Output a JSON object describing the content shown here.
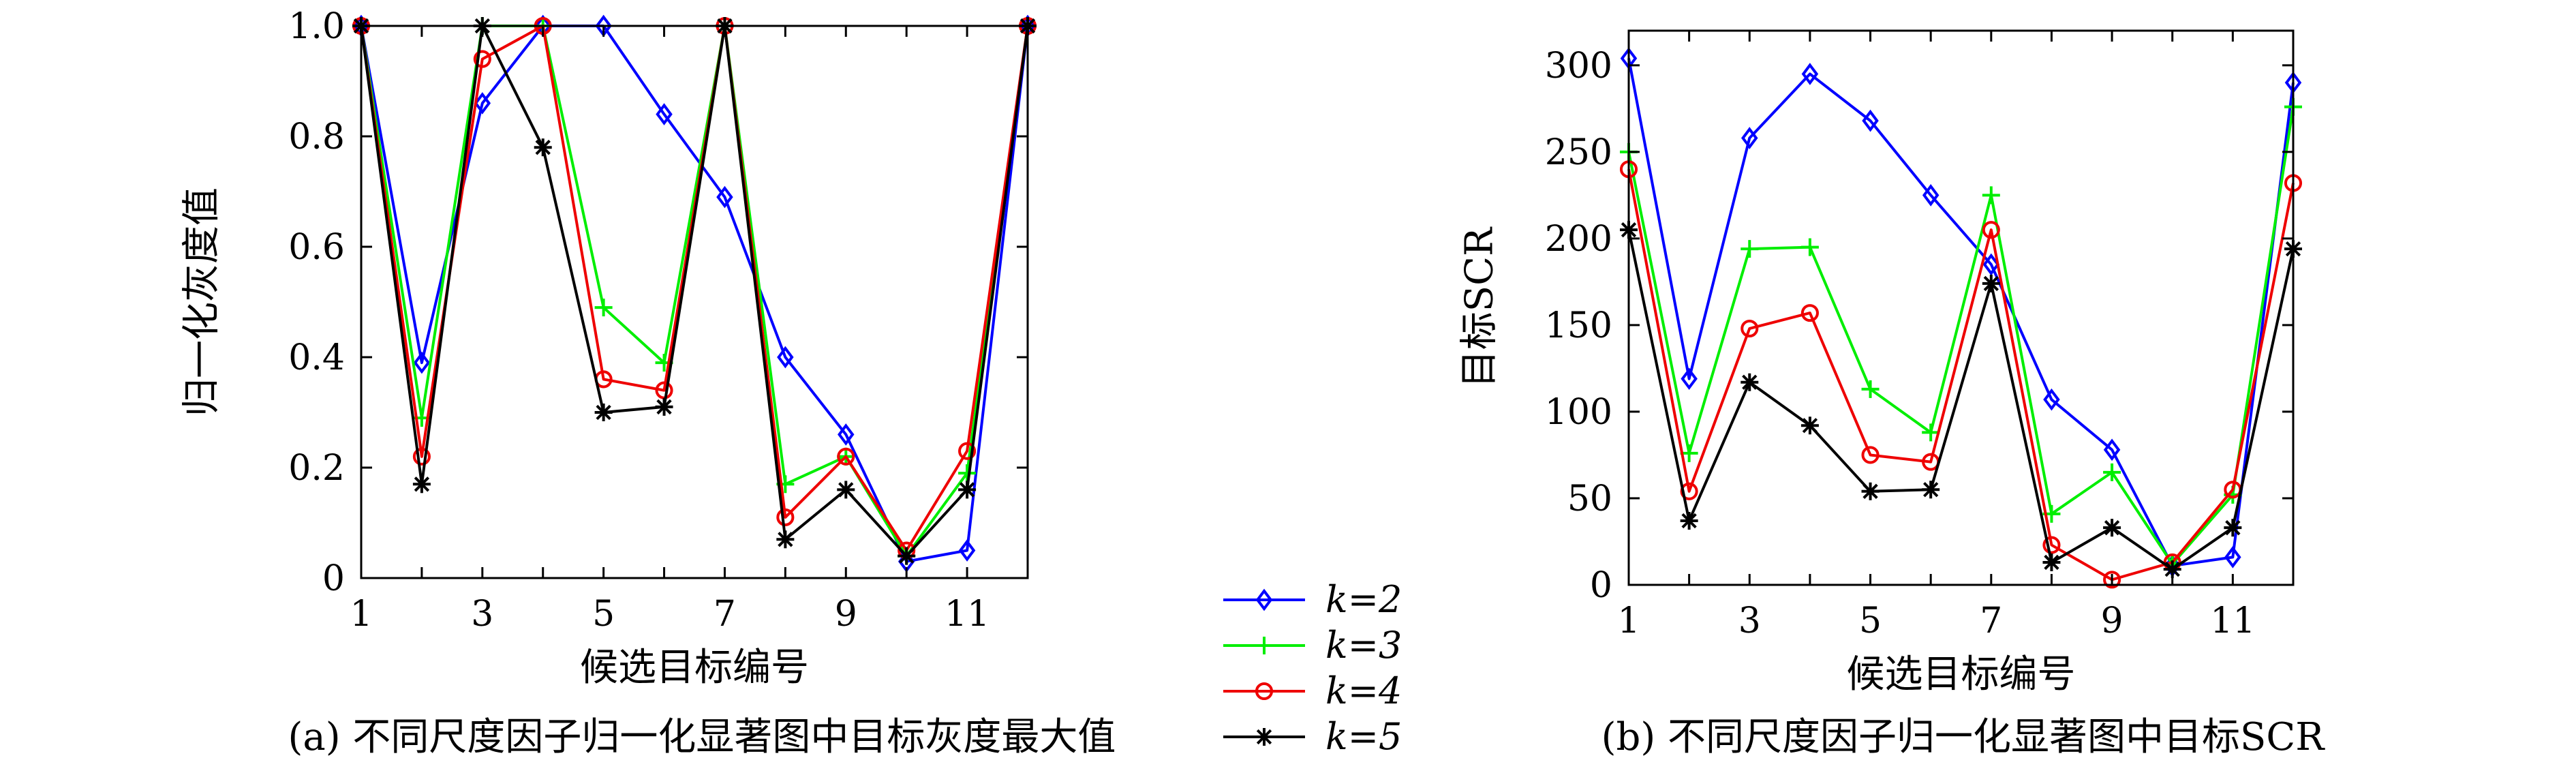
{
  "chart_data": [
    {
      "type": "line",
      "caption": "(a) 不同尺度因子归一化显著图中目标灰度最大值",
      "xlabel": "候选目标编号",
      "ylabel": "归一化灰度值",
      "xlim": [
        1,
        12
      ],
      "ylim": [
        0,
        1
      ],
      "xticks": [
        1,
        3,
        5,
        7,
        9,
        11
      ],
      "xtick_labels": [
        "1",
        "3",
        "5",
        "7",
        "9",
        "11"
      ],
      "yticks": [
        0,
        0.2,
        0.4,
        0.6,
        0.8,
        1.0
      ],
      "ytick_labels": [
        "0",
        "0.2",
        "0.4",
        "0.6",
        "0.8",
        "1.0"
      ],
      "grid": false,
      "x": [
        1,
        2,
        3,
        4,
        5,
        6,
        7,
        8,
        9,
        10,
        11,
        12
      ],
      "series": [
        {
          "name": "k=2",
          "color": "#0000ff",
          "marker": "diamond",
          "values": [
            1.0,
            0.39,
            0.86,
            1.0,
            1.0,
            0.84,
            0.69,
            0.4,
            0.26,
            0.03,
            0.05,
            1.0
          ]
        },
        {
          "name": "k=3",
          "color": "#00ee00",
          "marker": "plus",
          "values": [
            1.0,
            0.29,
            1.0,
            1.0,
            0.49,
            0.39,
            1.0,
            0.17,
            0.22,
            0.04,
            0.19,
            1.0
          ]
        },
        {
          "name": "k=4",
          "color": "#ee0000",
          "marker": "circle",
          "values": [
            1.0,
            0.22,
            0.94,
            1.0,
            0.36,
            0.34,
            1.0,
            0.11,
            0.22,
            0.05,
            0.23,
            1.0
          ]
        },
        {
          "name": "k=5",
          "color": "#000000",
          "marker": "star",
          "values": [
            1.0,
            0.17,
            1.0,
            0.78,
            0.3,
            0.31,
            1.0,
            0.07,
            0.16,
            0.04,
            0.16,
            1.0
          ]
        }
      ]
    },
    {
      "type": "line",
      "caption": "(b) 不同尺度因子归一化显著图中目标SCR",
      "xlabel": "候选目标编号",
      "ylabel": "目标SCR",
      "xlim": [
        1,
        12
      ],
      "ylim": [
        0,
        320
      ],
      "xticks": [
        1,
        3,
        5,
        7,
        9,
        11
      ],
      "xtick_labels": [
        "1",
        "3",
        "5",
        "7",
        "9",
        "11"
      ],
      "yticks": [
        0,
        50,
        100,
        150,
        200,
        250,
        300
      ],
      "ytick_labels": [
        "0",
        "50",
        "100",
        "150",
        "200",
        "250",
        "300"
      ],
      "grid": false,
      "x": [
        1,
        2,
        3,
        4,
        5,
        6,
        7,
        8,
        9,
        10,
        11,
        12
      ],
      "series": [
        {
          "name": "k=2",
          "color": "#0000ff",
          "marker": "diamond",
          "values": [
            304,
            119,
            258,
            295,
            268,
            225,
            185,
            107,
            78,
            11,
            16,
            290
          ]
        },
        {
          "name": "k=3",
          "color": "#00ee00",
          "marker": "plus",
          "values": [
            250,
            76,
            194,
            195,
            113,
            88,
            225,
            41,
            65,
            12,
            52,
            276
          ]
        },
        {
          "name": "k=4",
          "color": "#ee0000",
          "marker": "circle",
          "values": [
            240,
            54,
            148,
            157,
            75,
            71,
            205,
            23,
            3,
            13,
            55,
            232
          ]
        },
        {
          "name": "k=5",
          "color": "#000000",
          "marker": "star",
          "values": [
            205,
            37,
            117,
            92,
            54,
            55,
            174,
            13,
            33,
            9,
            33,
            194
          ]
        }
      ]
    }
  ],
  "legend": {
    "placement": "between-panels",
    "entries": [
      {
        "label": "k=2",
        "color": "#0000ff",
        "marker": "diamond"
      },
      {
        "label": "k=3",
        "color": "#00ee00",
        "marker": "plus"
      },
      {
        "label": "k=4",
        "color": "#ee0000",
        "marker": "circle"
      },
      {
        "label": "k=5",
        "color": "#000000",
        "marker": "star"
      }
    ]
  }
}
